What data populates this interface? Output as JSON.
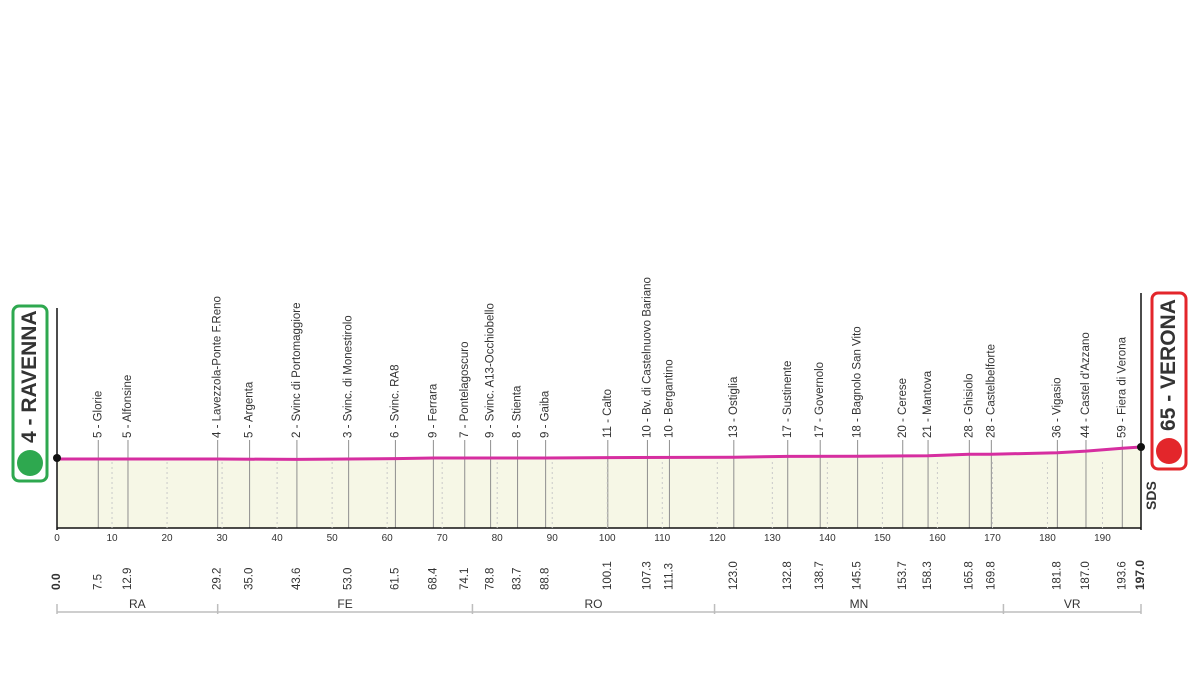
{
  "chart_data": {
    "type": "area",
    "start": {
      "name": "RAVENNA",
      "altitude": "4",
      "sep": " - "
    },
    "finish": {
      "name": "VERONA",
      "altitude": "65",
      "sep": " - "
    },
    "watermark": "SDS",
    "x_ticks": [
      0,
      10,
      20,
      30,
      40,
      50,
      60,
      70,
      80,
      90,
      100,
      110,
      120,
      130,
      140,
      150,
      160,
      170,
      180,
      190
    ],
    "xlim": [
      0,
      197.0
    ],
    "ylim": [
      0,
      65
    ],
    "profile": [
      {
        "x": 0,
        "y": 4
      },
      {
        "x": 29.2,
        "y": 4
      },
      {
        "x": 43.6,
        "y": 2
      },
      {
        "x": 61.5,
        "y": 6
      },
      {
        "x": 68.4,
        "y": 9
      },
      {
        "x": 78.8,
        "y": 9
      },
      {
        "x": 88.8,
        "y": 9
      },
      {
        "x": 100.1,
        "y": 11
      },
      {
        "x": 123.0,
        "y": 13
      },
      {
        "x": 132.8,
        "y": 17
      },
      {
        "x": 145.5,
        "y": 18
      },
      {
        "x": 158.3,
        "y": 21
      },
      {
        "x": 165.8,
        "y": 28
      },
      {
        "x": 169.8,
        "y": 28
      },
      {
        "x": 181.8,
        "y": 36
      },
      {
        "x": 187.0,
        "y": 44
      },
      {
        "x": 193.6,
        "y": 59
      },
      {
        "x": 197.0,
        "y": 65
      }
    ],
    "waypoints": [
      {
        "label": "5 - Glorie",
        "km": "7.5"
      },
      {
        "label": "5 - Alfonsine",
        "km": "12.9"
      },
      {
        "label": "4 - Lavezzola-Ponte F.Reno",
        "km": "29.2"
      },
      {
        "label": "5 - Argenta",
        "km": "35.0"
      },
      {
        "label": "2 - Svinc di Portomaggiore",
        "km": "43.6"
      },
      {
        "label": "3 - Svinc. di Monestirolo",
        "km": "53.0"
      },
      {
        "label": "6 - Svinc. RA8",
        "km": "61.5"
      },
      {
        "label": "9 - Ferrara",
        "km": "68.4"
      },
      {
        "label": "7 - Pontelagoscuro",
        "km": "74.1"
      },
      {
        "label": "9 - Svinc. A13-Occhiobello",
        "km": "78.8"
      },
      {
        "label": "8 - Stienta",
        "km": "83.7"
      },
      {
        "label": "9 - Gaiba",
        "km": "88.8"
      },
      {
        "label": "11 - Calto",
        "km": "100.1"
      },
      {
        "label": "10 - Bv. di Castelnuovo Bariano",
        "km": "107.3"
      },
      {
        "label": "10 - Bergantino",
        "km": "111.3"
      },
      {
        "label": "13 - Ostiglia",
        "km": "123.0"
      },
      {
        "label": "17 - Sustinente",
        "km": "132.8"
      },
      {
        "label": "17 - Governolo",
        "km": "138.7"
      },
      {
        "label": "18 - Bagnolo San Vito",
        "km": "145.5"
      },
      {
        "label": "20 - Cerese",
        "km": "153.7"
      },
      {
        "label": "21 - Mantova",
        "km": "158.3"
      },
      {
        "label": "28 - Ghisiolo",
        "km": "165.8"
      },
      {
        "label": "28 - Castelbelforte",
        "km": "169.8"
      },
      {
        "label": "36 - Vigasio",
        "km": "181.8"
      },
      {
        "label": "44 - Castel d'Azzano",
        "km": "187.0"
      },
      {
        "label": "59 - Fiera di Verona",
        "km": "193.6"
      }
    ],
    "start_km_label": "0.0",
    "finish_km_label": "197.0",
    "provinces": [
      {
        "name": "RA",
        "from": 0,
        "to": 29.2
      },
      {
        "name": "FE",
        "from": 29.2,
        "to": 75.5
      },
      {
        "name": "RO",
        "from": 75.5,
        "to": 119.5
      },
      {
        "name": "MN",
        "from": 119.5,
        "to": 172.0
      },
      {
        "name": "VR",
        "from": 172.0,
        "to": 197.0
      }
    ],
    "colors": {
      "profile_line": "#d62ea0",
      "profile_fill": "#f6f7e6",
      "guide_line": "#8e8e8e",
      "start_badge": "#2ea84f",
      "finish_badge": "#e3262b",
      "text": "#333333"
    }
  }
}
